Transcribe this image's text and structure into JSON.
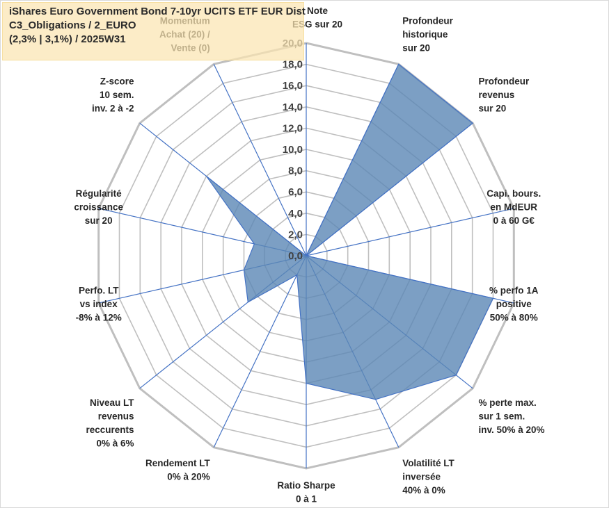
{
  "title": {
    "line1": "iShares Euro Government Bond 7-10yr UCITS ETF EUR Dist",
    "line2": "C3_Obligations / 2_EURO",
    "line3": "(2,3% | 3,1%) / 2025W31"
  },
  "colors": {
    "fill": "#5b87b5",
    "stroke": "#4472c4",
    "ring": "#bfbfbf",
    "ring_outer": "#bfbfbf",
    "spoke": "#4472c4",
    "title_bg": "#fbe5b2"
  },
  "chart_data": {
    "type": "radar",
    "r_range": [
      0,
      20
    ],
    "tick_step": 2,
    "grid": true,
    "tick_labels": [
      "0,0",
      "2,0",
      "4,0",
      "6,0",
      "8,0",
      "10,0",
      "12,0",
      "14,0",
      "16,0",
      "18,0",
      "20,0"
    ],
    "axes": [
      {
        "label": [
          "Note",
          "ESG sur 20"
        ],
        "value": 0
      },
      {
        "label": [
          "Profondeur",
          "historique",
          "sur 20"
        ],
        "value": 20
      },
      {
        "label": [
          "Profondeur",
          "revenus",
          "sur 20"
        ],
        "value": 20
      },
      {
        "label": [
          "Capi. bours.",
          "en MdEUR",
          "0 à 60 G€"
        ],
        "value": 0
      },
      {
        "label": [
          "% perfo 1A",
          "positive",
          "50% à 80%"
        ],
        "value": 18
      },
      {
        "label": [
          "% perte max.",
          "sur 1 sem.",
          "inv. 50% à 20%"
        ],
        "value": 18
      },
      {
        "label": [
          "Volatilité LT",
          "inversée",
          "40% à 0%"
        ],
        "value": 15
      },
      {
        "label": [
          "Ratio Sharpe",
          "0 à 1"
        ],
        "value": 12
      },
      {
        "label": [
          "Rendement LT",
          "0% à 20%"
        ],
        "value": 2
      },
      {
        "label": [
          "Niveau LT",
          "revenus",
          "reccurents",
          "0% à 6%"
        ],
        "value": 7
      },
      {
        "label": [
          "Perfo. LT",
          "vs index",
          "-8% à 12%"
        ],
        "value": 6
      },
      {
        "label": [
          "Régularité",
          "croissance",
          "sur 20"
        ],
        "value": 5
      },
      {
        "label": [
          "Z-score",
          "10 sem.",
          "inv. 2 à -2"
        ],
        "value": 12
      },
      {
        "label": [
          "Momentum",
          "Achat (20) /",
          "Vente (0)"
        ],
        "value": 0
      }
    ]
  }
}
